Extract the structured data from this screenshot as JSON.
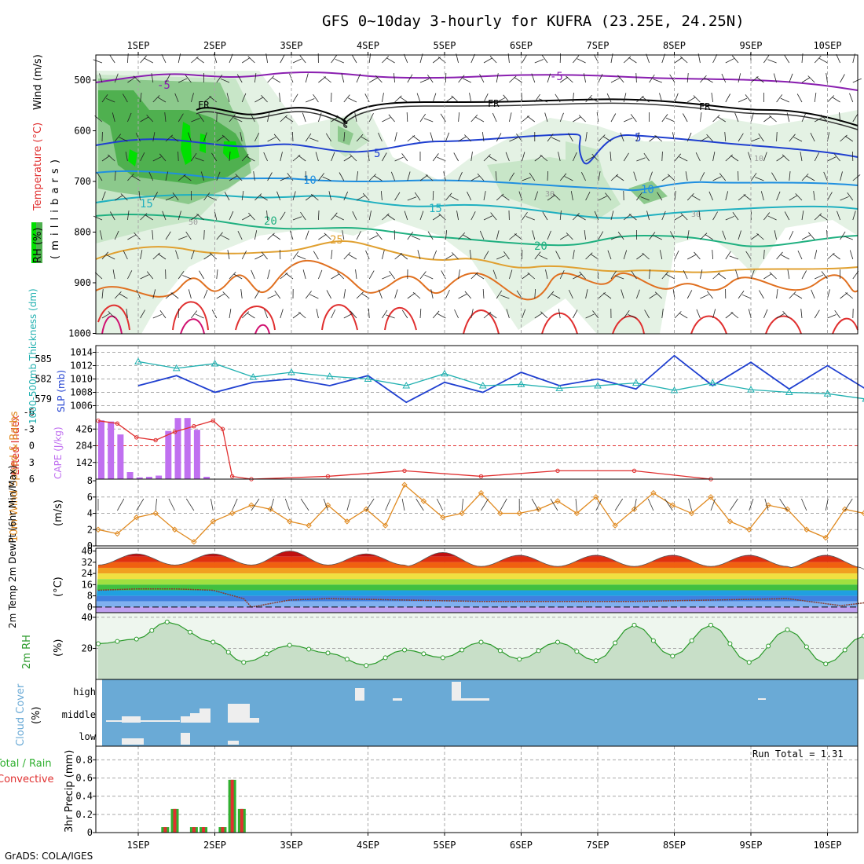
{
  "title": "GFS 0~10day 3-hourly for KUFRA (23.25E, 24.25N)",
  "footer": "GrADS: COLA/IGES",
  "date_labels": [
    "1SEP",
    "2SEP",
    "3SEP",
    "4SEP",
    "5SEP",
    "6SEP",
    "7SEP",
    "8SEP",
    "9SEP",
    "10SEP"
  ],
  "colors": {
    "rh_light": "#e4f2e4",
    "rh_mid": "#c8e6c8",
    "rh_dark": "#8cc98c",
    "rh_green": "#4fb04f",
    "rh_bright": "#00e000",
    "temp_neg5": "#8a1fb0",
    "temp_5": "#1f3fd0",
    "temp_10": "#1f8fe0",
    "temp_15": "#1fb0c0",
    "temp_20": "#1fb080",
    "temp_25": "#e0a030",
    "temp_30": "#e07020",
    "temp_35": "#e03030",
    "temp_40": "#d01070",
    "slp": "#1f3fd0",
    "thickness": "#20b0b0",
    "cape": "#c070f0",
    "lifted": "#e03030",
    "wind10": "#e08a20",
    "rh2m": "#2a9a2a",
    "cloud": "#6aaad6",
    "precip_total": "#30b030",
    "precip_conv": "#e03030"
  },
  "upper_panel": {
    "ylabels": {
      "rh": "RH (%)",
      "temperature": "Temperature (°C)",
      "wind": "Wind (m/s)",
      "millibars": "( m i l l i b a r s )"
    },
    "levels": [
      "500",
      "600",
      "700",
      "800",
      "900",
      "1000"
    ],
    "contour_labels": [
      {
        "text": "-5"
      },
      {
        "text": "-5"
      },
      {
        "text": "FR"
      },
      {
        "text": "FR"
      },
      {
        "text": "FR"
      },
      {
        "text": "5"
      },
      {
        "text": "5"
      },
      {
        "text": "10"
      },
      {
        "text": "10"
      },
      {
        "text": "15"
      },
      {
        "text": "15"
      },
      {
        "text": "20"
      },
      {
        "text": "20"
      },
      {
        "text": "25"
      },
      {
        "text": "10"
      },
      {
        "text": "30"
      },
      {
        "text": "30"
      },
      {
        "text": "50"
      }
    ]
  },
  "slp_panel": {
    "ylabel_thickness": "1000-500mb Thickness (dm)",
    "ylabel_slp": "SLP (mb)",
    "thickness_ticks": [
      "585",
      "582",
      "579"
    ],
    "slp_ticks": [
      "1014",
      "1012",
      "1010",
      "1008",
      "1006"
    ]
  },
  "cape_panel": {
    "ylabel_li": "Lifted Index",
    "ylabel_cape": "CAPE (J/kg)",
    "li_ticks": [
      "-6",
      "-3",
      "0",
      "3",
      "6"
    ],
    "cape_ticks": [
      "426",
      "284",
      "142"
    ]
  },
  "wind_panel": {
    "ylabel": "10m Wind Speed & Barbs",
    "unit": "(m/s)",
    "ticks": [
      "8",
      "6",
      "4",
      "2",
      "0"
    ]
  },
  "temp_panel": {
    "ylabel": "2m Temp 2m DewPt (6hr Min/Max)",
    "unit": "(°C)",
    "ticks": [
      "40",
      "32",
      "24",
      "16",
      "8",
      "0"
    ]
  },
  "rh2m_panel": {
    "ylabel": "2m RH",
    "unit": "(%)",
    "ticks": [
      "40",
      "20"
    ]
  },
  "cloud_panel": {
    "ylabel": "Cloud Cover",
    "unit": "(%)",
    "levels": [
      "high",
      "middle",
      "low"
    ]
  },
  "precip_panel": {
    "ylabel_total": "Total / Rain",
    "ylabel_conv": "Convective",
    "ylabel": "3hr Precip (mm)",
    "ticks": [
      "0.8",
      "0.6",
      "0.4",
      "0.2",
      "0"
    ],
    "run_total": "Run Total = 1.31"
  },
  "chart_data": [
    {
      "type": "line",
      "title": "1000-500mb Thickness (dm) / SLP (mb)",
      "x_unit": "days from 1SEP 00Z",
      "series": [
        {
          "name": "SLP (mb)",
          "x": [
            0,
            0.5,
            1,
            1.5,
            2,
            2.5,
            3,
            3.5,
            4,
            4.5,
            5,
            5.5,
            6,
            6.5,
            7,
            7.5,
            8,
            8.5,
            9,
            9.5,
            10,
            10.2
          ],
          "values": [
            1009,
            1010.5,
            1008,
            1009.5,
            1010,
            1009,
            1010.5,
            1006.5,
            1009.5,
            1008,
            1011,
            1009,
            1010,
            1008.5,
            1013.5,
            1009,
            1012.5,
            1008.5,
            1012,
            1008.5,
            1011.5,
            1013
          ]
        },
        {
          "name": "1000-500mb Thickness (dm)",
          "x": [
            0,
            0.5,
            1,
            1.5,
            2,
            2.5,
            3,
            3.5,
            4,
            4.5,
            5,
            5.5,
            6,
            6.5,
            7,
            7.5,
            8,
            8.5,
            9,
            9.5,
            10,
            10.2
          ],
          "values": [
            584.6,
            583.6,
            584.3,
            582.3,
            583.0,
            582.4,
            582.0,
            581.0,
            582.8,
            581.0,
            581.2,
            580.6,
            581.0,
            581.4,
            580.3,
            581.4,
            580.4,
            580.0,
            579.8,
            579.0,
            578.6,
            577.8
          ]
        }
      ],
      "ylim_slp": [
        1005,
        1015
      ],
      "ylim_thickness": [
        577,
        587
      ]
    },
    {
      "type": "bar",
      "title": "CAPE (J/kg) / Lifted Index",
      "x_unit": "days from 1SEP 00Z",
      "categories": [
        0,
        0.125,
        0.25,
        0.375,
        0.5,
        0.625,
        0.75,
        0.875,
        1,
        1.125,
        1.25,
        1.375,
        1.5,
        1.625
      ],
      "values": [
        500,
        490,
        380,
        60,
        15,
        20,
        30,
        410,
        520,
        520,
        420,
        20,
        0,
        0
      ],
      "lifted_index": {
        "x": [
          0,
          0.25,
          0.5,
          0.75,
          1,
          1.25,
          1.5,
          1.625,
          1.75,
          2,
          3,
          4,
          5,
          6,
          7,
          8
        ],
        "values": [
          -4.5,
          -4,
          -1.5,
          -1,
          -2.5,
          -3.5,
          -4.5,
          -3,
          5.5,
          6,
          5.5,
          4.5,
          5.5,
          4.5,
          4.5,
          6
        ]
      },
      "ylim_cape": [
        0,
        568
      ],
      "ylim_li": [
        6,
        -6
      ]
    },
    {
      "type": "line",
      "title": "10m Wind Speed (m/s)",
      "x_unit": "days from 1SEP 00Z",
      "x": [
        0,
        0.25,
        0.5,
        0.75,
        1,
        1.25,
        1.5,
        1.75,
        2,
        2.25,
        2.5,
        2.75,
        3,
        3.25,
        3.5,
        3.75,
        4,
        4.25,
        4.5,
        4.75,
        5,
        5.25,
        5.5,
        5.75,
        6,
        6.25,
        6.5,
        6.75,
        7,
        7.25,
        7.5,
        7.75,
        8,
        8.25,
        8.5,
        8.75,
        9,
        9.25,
        9.5,
        9.75,
        10,
        10.25
      ],
      "values": [
        2,
        1.5,
        3.5,
        4,
        2,
        0.5,
        3,
        4,
        5,
        4.5,
        3,
        2.5,
        5,
        3,
        4.5,
        2.5,
        7.5,
        5.5,
        3.5,
        4,
        6.5,
        4,
        4,
        4.5,
        5.5,
        4,
        6,
        2.5,
        4.5,
        6.5,
        5,
        4,
        6,
        3,
        2,
        5,
        4.5,
        2,
        1,
        4.5,
        4,
        3.5
      ],
      "ylim": [
        0,
        8
      ]
    },
    {
      "type": "area",
      "title": "2m Temp / 2m DewPt (°C)",
      "x_unit": "days from 1SEP 00Z",
      "temp_max": [
        38,
        38,
        40,
        38,
        39,
        37,
        37,
        37,
        37,
        37,
        37
      ],
      "temp_min": [
        30,
        30,
        30,
        30,
        29,
        29,
        29,
        29,
        29,
        28,
        27
      ],
      "dewpoint": {
        "x": [
          0,
          0.5,
          1,
          1.5,
          1.9,
          2,
          2.5,
          3,
          4,
          5,
          6,
          7,
          8,
          9,
          9.7,
          10,
          10.25
        ],
        "values": [
          12,
          13,
          13,
          12,
          6,
          0,
          5,
          6,
          5,
          4,
          4,
          4,
          5,
          6,
          1,
          3,
          4
        ]
      },
      "ylim": [
        -4,
        42
      ]
    },
    {
      "type": "area",
      "title": "2m RH (%)",
      "x_unit": "days from 1SEP 00Z",
      "x": [
        0,
        0.5,
        0.9,
        1.5,
        1.9,
        2.5,
        3,
        3.5,
        4,
        4.5,
        5,
        5.5,
        6,
        6.5,
        7,
        7.5,
        8,
        8.5,
        9,
        9.5,
        10,
        10.25
      ],
      "values": [
        23,
        26,
        37,
        24,
        11,
        22,
        17,
        9,
        19,
        14,
        24,
        13,
        24,
        12,
        35,
        15,
        35,
        11,
        32,
        10,
        28,
        23
      ],
      "ylim": [
        0,
        40
      ]
    },
    {
      "type": "bar",
      "title": "3hr Precip (mm)",
      "x_unit": "days from 1SEP 00Z",
      "categories": [
        0.875,
        1.0,
        1.25,
        1.375,
        1.625,
        1.75,
        1.875
      ],
      "values": [
        0.06,
        0.26,
        0.06,
        0.06,
        0.06,
        0.58,
        0.26
      ],
      "ylim": [
        0,
        0.95
      ]
    }
  ]
}
